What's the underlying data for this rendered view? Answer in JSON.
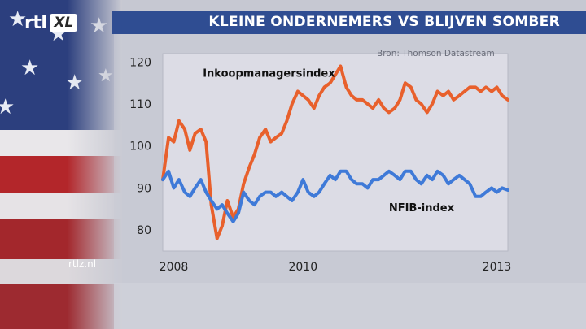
{
  "header": {
    "title": "KLEINE ONDERNEMERS VS BLIJVEN SOMBER"
  },
  "logo": {
    "rtl": "rtl",
    "xl": "XL"
  },
  "footer": {
    "site": "rtlz.nl"
  },
  "colors": {
    "banner": "#2f4d92",
    "ism_line": "#e8602c",
    "nfib_line": "#3f7ad8",
    "plot_bg": "#dcdce5"
  },
  "chart_data": {
    "type": "line",
    "source": "Bron: Thomson Datastream",
    "xlim": [
      2007.83,
      2013.17
    ],
    "ylim": [
      75,
      122
    ],
    "yticks": [
      80,
      90,
      100,
      110,
      120
    ],
    "xticks": [
      {
        "value": 2008,
        "label": "2008"
      },
      {
        "value": 2010,
        "label": "2010"
      },
      {
        "value": 2013,
        "label": "2013"
      }
    ],
    "grid": false,
    "series": [
      {
        "name": "Inkoopmanagersindex",
        "x": [
          2007.83,
          2007.92,
          2008.0,
          2008.08,
          2008.17,
          2008.25,
          2008.33,
          2008.42,
          2008.5,
          2008.58,
          2008.67,
          2008.75,
          2008.83,
          2008.92,
          2009.0,
          2009.08,
          2009.17,
          2009.25,
          2009.33,
          2009.42,
          2009.5,
          2009.58,
          2009.67,
          2009.75,
          2009.83,
          2009.92,
          2010.0,
          2010.08,
          2010.17,
          2010.25,
          2010.33,
          2010.42,
          2010.5,
          2010.58,
          2010.67,
          2010.75,
          2010.83,
          2010.92,
          2011.0,
          2011.08,
          2011.17,
          2011.25,
          2011.33,
          2011.42,
          2011.5,
          2011.58,
          2011.67,
          2011.75,
          2011.83,
          2011.92,
          2012.0,
          2012.08,
          2012.17,
          2012.25,
          2012.33,
          2012.42,
          2012.5,
          2012.58,
          2012.67,
          2012.75,
          2012.83,
          2012.92,
          2013.0,
          2013.08,
          2013.17
        ],
        "values": [
          92,
          102,
          101,
          106,
          104,
          99,
          103,
          104,
          101,
          86,
          78,
          81,
          87,
          83,
          85,
          91,
          95,
          98,
          102,
          104,
          101,
          102,
          103,
          106,
          110,
          113,
          112,
          111,
          109,
          112,
          114,
          115,
          117,
          119,
          114,
          112,
          111,
          111,
          110,
          109,
          111,
          109,
          108,
          109,
          111,
          115,
          114,
          111,
          110,
          108,
          110,
          113,
          112,
          113,
          111,
          112,
          113,
          114,
          114,
          113,
          114,
          113,
          114,
          112,
          111
        ]
      },
      {
        "name": "NFIB-index",
        "x": [
          2007.83,
          2007.92,
          2008.0,
          2008.08,
          2008.17,
          2008.25,
          2008.33,
          2008.42,
          2008.5,
          2008.58,
          2008.67,
          2008.75,
          2008.83,
          2008.92,
          2009.0,
          2009.08,
          2009.17,
          2009.25,
          2009.33,
          2009.42,
          2009.5,
          2009.58,
          2009.67,
          2009.75,
          2009.83,
          2009.92,
          2010.0,
          2010.08,
          2010.17,
          2010.25,
          2010.33,
          2010.42,
          2010.5,
          2010.58,
          2010.67,
          2010.75,
          2010.83,
          2010.92,
          2011.0,
          2011.08,
          2011.17,
          2011.25,
          2011.33,
          2011.42,
          2011.5,
          2011.58,
          2011.67,
          2011.75,
          2011.83,
          2011.92,
          2012.0,
          2012.08,
          2012.17,
          2012.25,
          2012.33,
          2012.42,
          2012.5,
          2012.58,
          2012.67,
          2012.75,
          2012.83,
          2012.92,
          2013.0,
          2013.08,
          2013.17
        ],
        "values": [
          92,
          94,
          90,
          92,
          89,
          88,
          90,
          92,
          89,
          87,
          85,
          86,
          84,
          82,
          84,
          89,
          87,
          86,
          88,
          89,
          89,
          88,
          89,
          88,
          87,
          89,
          92,
          89,
          88,
          89,
          91,
          93,
          92,
          94,
          94,
          92,
          91,
          91,
          90,
          92,
          92,
          93,
          94,
          93,
          92,
          94,
          94,
          92,
          91,
          93,
          92,
          94,
          93,
          91,
          92,
          93,
          92,
          91,
          88,
          88,
          89,
          90,
          89,
          90,
          89.5
        ]
      }
    ]
  }
}
